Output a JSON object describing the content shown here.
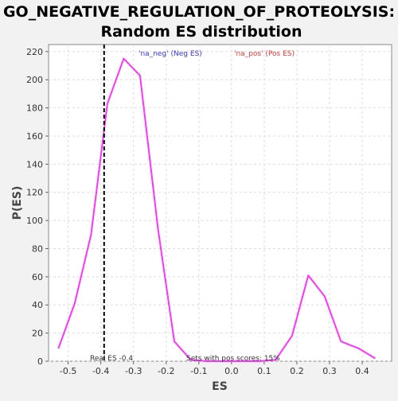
{
  "chart_data": {
    "type": "line",
    "title_line1": "GO_NEGATIVE_REGULATION_OF_PROTEOLYSIS:",
    "title_line2": "Random ES distribution",
    "xlabel": "ES",
    "ylabel": "P(ES)",
    "xlim": [
      -0.56,
      0.49
    ],
    "ylim": [
      0,
      225
    ],
    "x_ticks": [
      -0.5,
      -0.4,
      -0.3,
      -0.2,
      -0.1,
      0.0,
      0.1,
      0.2,
      0.3,
      0.4
    ],
    "x_tick_labels": [
      "-0.5",
      "-0.4",
      "-0.3",
      "-0.2",
      "-0.1",
      "0.0",
      "0.1",
      "0.2",
      "0.3",
      "0.4"
    ],
    "y_ticks": [
      0,
      20,
      40,
      60,
      80,
      100,
      120,
      140,
      160,
      180,
      200,
      220
    ],
    "y_tick_labels": [
      "0",
      "20",
      "40",
      "60",
      "80",
      "100",
      "120",
      "140",
      "160",
      "180",
      "200",
      "220"
    ],
    "grid": true,
    "series": [
      {
        "color": "#ff33ff",
        "x": [
          -0.53,
          -0.48,
          -0.43,
          -0.38,
          -0.33,
          -0.28,
          -0.225,
          -0.175,
          -0.125,
          -0.075,
          -0.025,
          0.035,
          0.085,
          0.135,
          0.185,
          0.235,
          0.285,
          0.335,
          0.39,
          0.44
        ],
        "y": [
          9,
          41,
          90,
          183,
          215,
          203,
          94,
          14,
          1,
          0,
          0,
          0,
          0,
          1,
          18,
          61,
          46,
          14,
          9,
          2
        ]
      }
    ],
    "legend": {
      "neg_label": "'na_neg' (Neg ES)",
      "neg_color": "#3333ee",
      "pos_label": "'na_pos' (Pos ES)",
      "pos_color": "#ee3333"
    },
    "real_es": {
      "value": -0.39,
      "label": "Real ES -0.4"
    },
    "pos_annotation": "Sets with pos scores: 15%"
  }
}
